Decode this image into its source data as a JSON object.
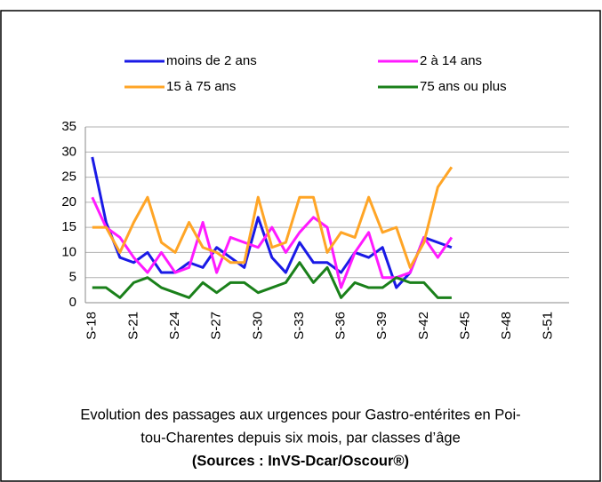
{
  "chart_data": {
    "type": "line",
    "categories": [
      "S-18",
      null,
      null,
      "S-21",
      null,
      null,
      "S-24",
      null,
      null,
      "S-27",
      null,
      null,
      "S-30",
      null,
      null,
      "S-33",
      null,
      null,
      "S-36",
      null,
      null,
      "S-39",
      null,
      null,
      "S-42",
      null,
      null,
      "S-45",
      null,
      null,
      "S-48",
      null,
      null,
      "S-51",
      null
    ],
    "series": [
      {
        "name": "moins de 2 ans",
        "color": "#1a1ae6",
        "values": [
          29,
          16,
          9,
          8,
          10,
          6,
          6,
          8,
          7,
          11,
          9,
          7,
          17,
          9,
          6,
          12,
          8,
          8,
          6,
          10,
          9,
          11,
          3,
          6,
          13,
          12,
          11,
          null,
          null,
          null,
          null,
          null,
          null,
          null,
          null
        ]
      },
      {
        "name": "2 à 14 ans",
        "color": "#ff1aff",
        "values": [
          21,
          15,
          13,
          9,
          6,
          10,
          6,
          7,
          16,
          6,
          13,
          12,
          11,
          15,
          10,
          14,
          17,
          15,
          3,
          10,
          14,
          5,
          5,
          6,
          13,
          9,
          13,
          null,
          null,
          null,
          null,
          null,
          null,
          null,
          null
        ]
      },
      {
        "name": "15 à 75 ans",
        "color": "#ffa526",
        "values": [
          15,
          15,
          10,
          16,
          21,
          12,
          10,
          16,
          11,
          10,
          8,
          8,
          21,
          11,
          12,
          21,
          21,
          10,
          14,
          13,
          21,
          14,
          15,
          7,
          12,
          23,
          27,
          null,
          null,
          null,
          null,
          null,
          null,
          null,
          null
        ]
      },
      {
        "name": "75 ans ou plus",
        "color": "#1a801a",
        "values": [
          3,
          3,
          1,
          4,
          5,
          3,
          2,
          1,
          4,
          2,
          4,
          4,
          2,
          3,
          4,
          8,
          4,
          7,
          1,
          4,
          3,
          3,
          5,
          4,
          4,
          1,
          1,
          null,
          null,
          null,
          null,
          null,
          null,
          null,
          null
        ]
      }
    ],
    "ylim": [
      0,
      35
    ],
    "yticks": [
      0,
      5,
      10,
      15,
      20,
      25,
      30,
      35
    ],
    "grid": true,
    "caption": [
      "Evolution des passages aux urgences pour Gastro-entérites en Poi-",
      "tou-Charentes depuis six mois, par classes d’âge"
    ],
    "source": "(Sources : InVS-Dcar/Oscour®)"
  }
}
